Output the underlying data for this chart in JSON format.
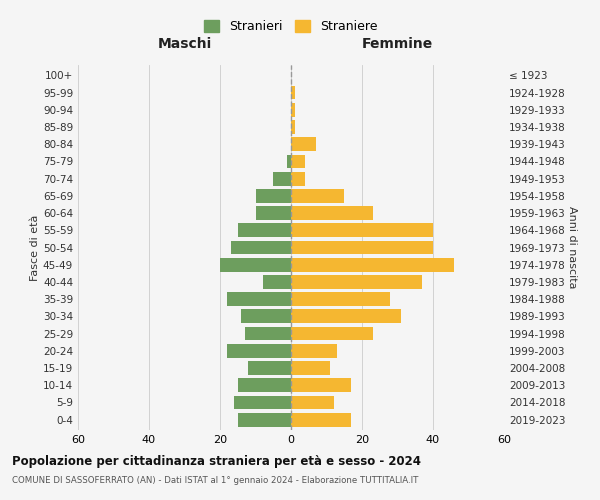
{
  "age_groups": [
    "0-4",
    "5-9",
    "10-14",
    "15-19",
    "20-24",
    "25-29",
    "30-34",
    "35-39",
    "40-44",
    "45-49",
    "50-54",
    "55-59",
    "60-64",
    "65-69",
    "70-74",
    "75-79",
    "80-84",
    "85-89",
    "90-94",
    "95-99",
    "100+"
  ],
  "birth_years": [
    "2019-2023",
    "2014-2018",
    "2009-2013",
    "2004-2008",
    "1999-2003",
    "1994-1998",
    "1989-1993",
    "1984-1988",
    "1979-1983",
    "1974-1978",
    "1969-1973",
    "1964-1968",
    "1959-1963",
    "1954-1958",
    "1949-1953",
    "1944-1948",
    "1939-1943",
    "1934-1938",
    "1929-1933",
    "1924-1928",
    "≤ 1923"
  ],
  "maschi": [
    15,
    16,
    15,
    12,
    18,
    13,
    14,
    18,
    8,
    20,
    17,
    15,
    10,
    10,
    5,
    1,
    0,
    0,
    0,
    0,
    0
  ],
  "femmine": [
    17,
    12,
    17,
    11,
    13,
    23,
    31,
    28,
    37,
    46,
    40,
    40,
    23,
    15,
    4,
    4,
    7,
    1,
    1,
    1,
    0
  ],
  "color_maschi": "#6d9e5e",
  "color_femmine": "#f5b731",
  "title": "Popolazione per cittadinanza straniera per età e sesso - 2024",
  "subtitle": "COMUNE DI SASSOFERRATO (AN) - Dati ISTAT al 1° gennaio 2024 - Elaborazione TUTTITALIA.IT",
  "xlabel_left": "Maschi",
  "xlabel_right": "Femmine",
  "ylabel_left": "Fasce di età",
  "ylabel_right": "Anni di nascita",
  "legend_maschi": "Stranieri",
  "legend_femmine": "Straniere",
  "xlim": 60,
  "bg_color": "#f5f5f5",
  "grid_color": "#cccccc",
  "dashed_line_color": "#999999"
}
